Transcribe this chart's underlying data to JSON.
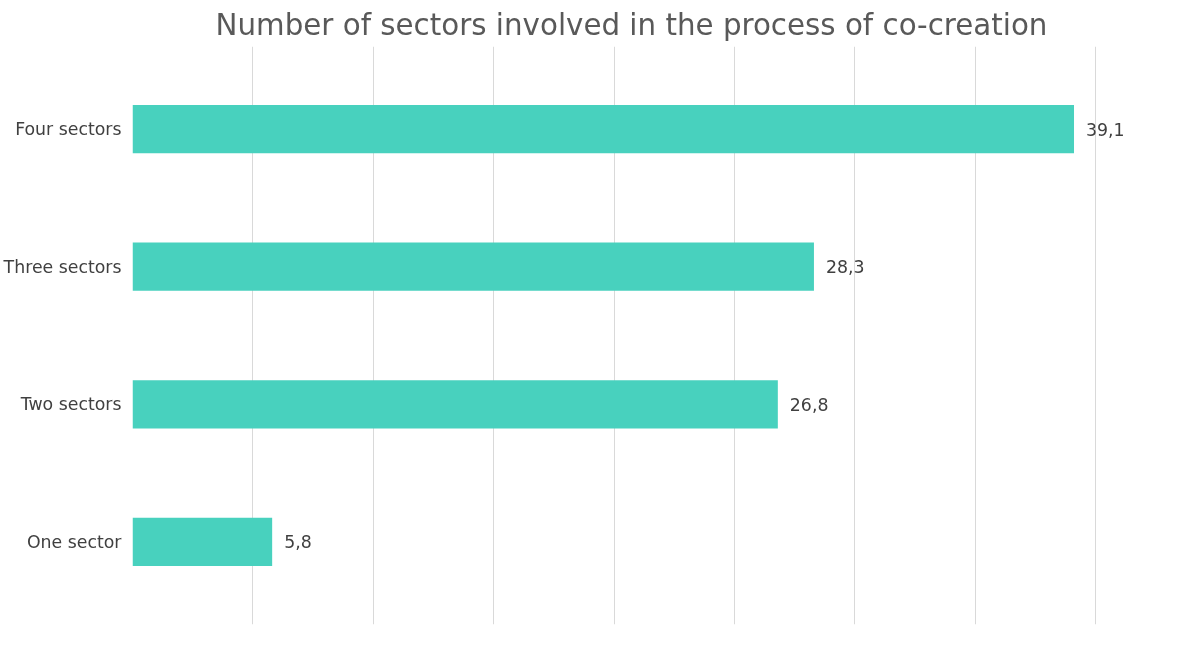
{
  "chart_data": {
    "type": "bar",
    "orientation": "horizontal",
    "title": "Number of sectors involved in the process of co-creation",
    "categories": [
      "Four sectors",
      "Three sectors",
      "Two sectors",
      "One sector"
    ],
    "values": [
      39.1,
      28.3,
      26.8,
      5.8
    ],
    "color": "#48d1be",
    "value_labels": [
      "39,1",
      "28,3",
      "26,8",
      "5,8"
    ],
    "tick_labels": "y",
    "grid": "x"
  }
}
